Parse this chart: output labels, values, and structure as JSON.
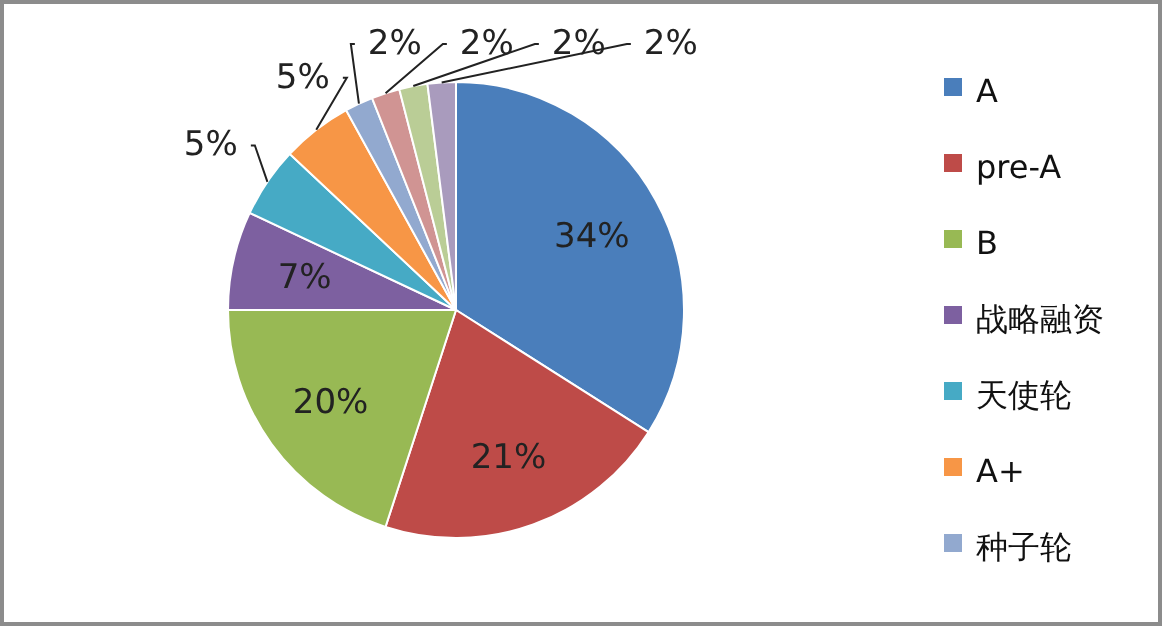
{
  "chart_data": {
    "type": "pie",
    "categories": [
      "A",
      "pre-A",
      "B",
      "战略融资",
      "天使轮",
      "A+",
      "种子轮",
      null,
      null,
      null
    ],
    "values": [
      34,
      21,
      20,
      7,
      5,
      5,
      2,
      2,
      2,
      2
    ],
    "value_labels": [
      "34%",
      "21%",
      "20%",
      "7%",
      "5%",
      "5%",
      "2%",
      "2%",
      "2%",
      "2%"
    ],
    "colors": [
      "#4a7ebb",
      "#be4b48",
      "#98b954",
      "#7d60a0",
      "#46aac5",
      "#f79646",
      "#92a9cf",
      "#d09493",
      "#bacd96",
      "#a99bbd"
    ],
    "legend": "right"
  }
}
